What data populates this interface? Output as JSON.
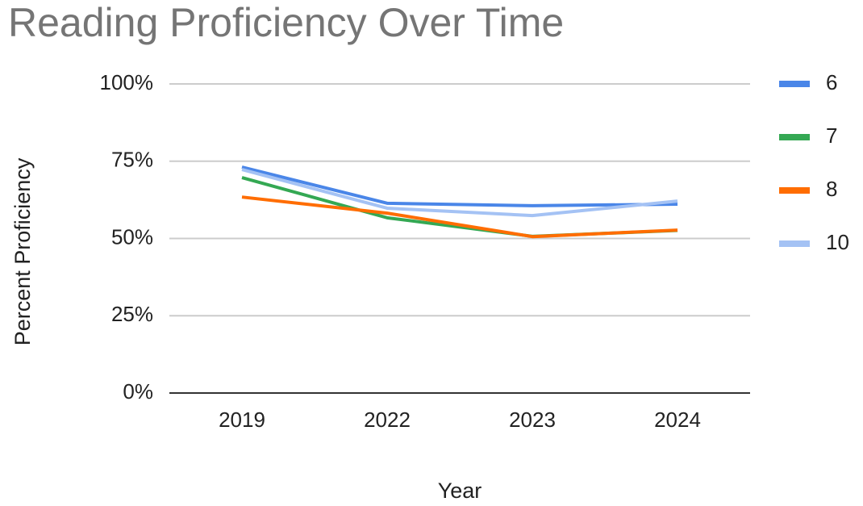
{
  "chart_data": {
    "type": "line",
    "title": "Reading Proficiency Over Time",
    "x_label": "Year",
    "y_label": "Percent Proficiency",
    "categories": [
      "2019",
      "2022",
      "2023",
      "2024"
    ],
    "series": [
      {
        "name": "6",
        "color": "#4a86e8",
        "values": [
          73.1,
          61.4,
          60.6,
          61.1
        ]
      },
      {
        "name": "7",
        "color": "#34a853",
        "values": [
          69.7,
          56.7,
          50.7,
          52.6
        ]
      },
      {
        "name": "8",
        "color": "#ff6d01",
        "values": [
          63.4,
          58.2,
          50.6,
          52.7
        ]
      },
      {
        "name": "10",
        "color": "#a4c2f4",
        "values": [
          72.3,
          59.8,
          57.4,
          62.1
        ]
      }
    ],
    "ylim": [
      0,
      100
    ],
    "yticks": [
      {
        "value": 0,
        "label": "0%"
      },
      {
        "value": 25,
        "label": "25%"
      },
      {
        "value": 50,
        "label": "50%"
      },
      {
        "value": 75,
        "label": "75%"
      },
      {
        "value": 100,
        "label": "100%"
      }
    ],
    "grid": true,
    "legend": "right"
  }
}
